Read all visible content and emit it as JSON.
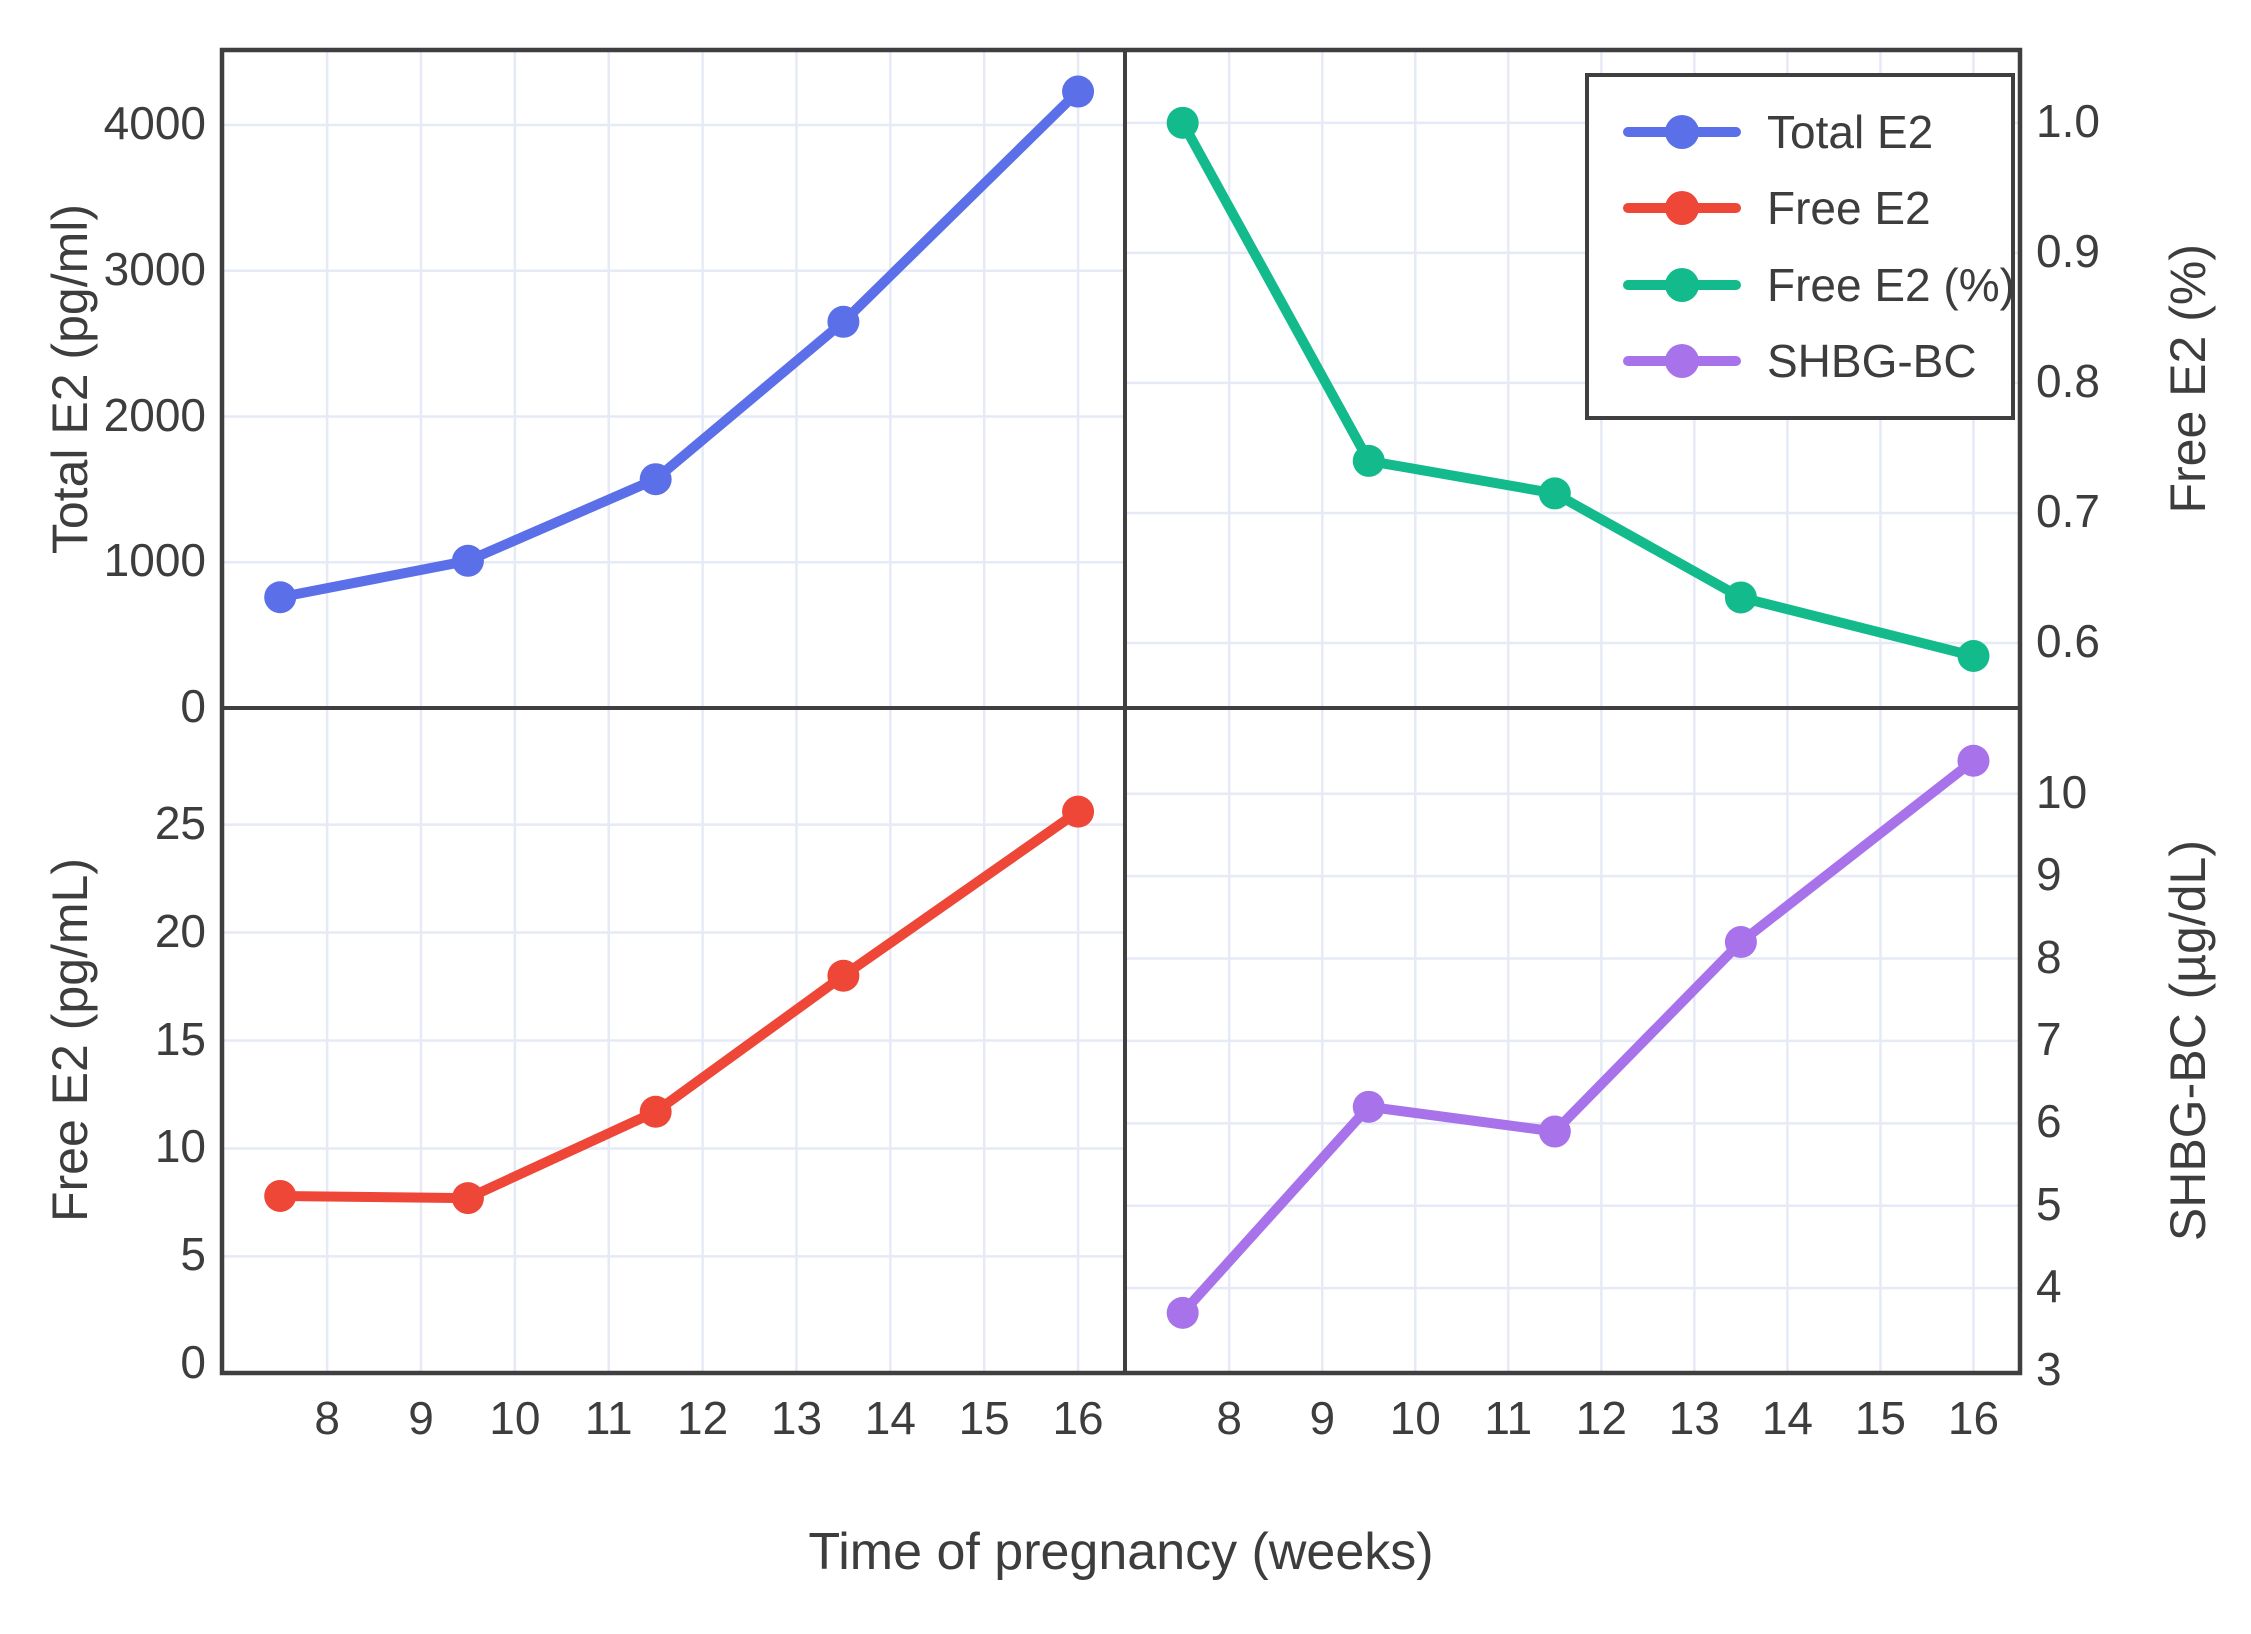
{
  "figure_labels": {
    "xlabel": "Time of pregnancy (weeks)"
  },
  "colors": {
    "total_e2": "#5A6FE8",
    "free_e2": "#EE4637",
    "free_e2_pct": "#13BB8C",
    "shbg_bc": "#A873EA",
    "axis": "#3F3F3F",
    "grid": "#E6EAF6",
    "text": "#3D3D3D",
    "background": "#FFFFFF"
  },
  "legend": {
    "position": "upper-right-panel",
    "entries": [
      {
        "label": "Total E2",
        "color": "#5A6FE8"
      },
      {
        "label": "Free E2",
        "color": "#EE4637"
      },
      {
        "label": "Free E2 (%)",
        "color": "#13BB8C"
      },
      {
        "label": "SHBG-BC",
        "color": "#A873EA"
      }
    ]
  },
  "chart_data": [
    {
      "type": "line",
      "name": "Total E2",
      "panel": "top-left",
      "axis_side": "left",
      "axis_label": "Total E2 (pg/ml)",
      "color": "#5A6FE8",
      "x": [
        7.5,
        9.5,
        11.5,
        13.5,
        16
      ],
      "y": [
        760,
        1010,
        1570,
        2650,
        4230
      ],
      "xlim": [
        6.88,
        16.5
      ],
      "ylim": [
        0,
        4515
      ],
      "xticks": [
        8,
        9,
        10,
        11,
        12,
        13,
        14,
        15,
        16
      ],
      "xtick_labels": [
        "8",
        "9",
        "10",
        "11",
        "12",
        "13",
        "14",
        "15",
        "16"
      ],
      "yticks": [
        0,
        1000,
        2000,
        3000,
        4000
      ],
      "ytick_labels": [
        "0",
        "1000",
        "2000",
        "3000",
        "4000"
      ],
      "grid": true
    },
    {
      "type": "line",
      "name": "Free E2 (%)",
      "panel": "top-right",
      "axis_side": "right",
      "axis_label": "Free E2 (%)",
      "color": "#13BB8C",
      "x": [
        7.5,
        9.5,
        11.5,
        13.5,
        16
      ],
      "y": [
        1.0,
        0.74,
        0.715,
        0.635,
        0.59
      ],
      "xlim": [
        6.88,
        16.5
      ],
      "ylim": [
        0.55,
        1.056
      ],
      "xticks": [
        8,
        9,
        10,
        11,
        12,
        13,
        14,
        15,
        16
      ],
      "xtick_labels": [
        "8",
        "9",
        "10",
        "11",
        "12",
        "13",
        "14",
        "15",
        "16"
      ],
      "yticks": [
        0.6,
        0.7,
        0.8,
        0.9,
        1.0
      ],
      "ytick_labels": [
        "0.6",
        "0.7",
        "0.8",
        "0.9",
        "1.0"
      ],
      "grid": true
    },
    {
      "type": "line",
      "name": "Free E2",
      "panel": "bottom-left",
      "axis_side": "left",
      "axis_label": "Free E2 (pg/mL)",
      "color": "#EE4637",
      "x": [
        7.5,
        9.5,
        11.5,
        13.5,
        16
      ],
      "y": [
        7.8,
        7.7,
        11.7,
        18.0,
        25.6
      ],
      "xlim": [
        6.88,
        16.5
      ],
      "ylim": [
        -0.4,
        30.4
      ],
      "xticks": [
        8,
        9,
        10,
        11,
        12,
        13,
        14,
        15,
        16
      ],
      "xtick_labels": [
        "8",
        "9",
        "10",
        "11",
        "12",
        "13",
        "14",
        "15",
        "16"
      ],
      "yticks": [
        0,
        5,
        10,
        15,
        20,
        25
      ],
      "ytick_labels": [
        "0",
        "5",
        "10",
        "15",
        "20",
        "25"
      ],
      "grid": true
    },
    {
      "type": "line",
      "name": "SHBG-BC",
      "panel": "bottom-right",
      "axis_side": "right",
      "axis_label": "SHBG-BC (µg/dL)",
      "color": "#A873EA",
      "x": [
        7.5,
        9.5,
        11.5,
        13.5,
        16
      ],
      "y": [
        3.7,
        6.2,
        5.9,
        8.2,
        10.4
      ],
      "xlim": [
        6.88,
        16.5
      ],
      "ylim": [
        2.97,
        11.04
      ],
      "xticks": [
        8,
        9,
        10,
        11,
        12,
        13,
        14,
        15,
        16
      ],
      "xtick_labels": [
        "8",
        "9",
        "10",
        "11",
        "12",
        "13",
        "14",
        "15",
        "16"
      ],
      "yticks": [
        3,
        4,
        5,
        6,
        7,
        8,
        9,
        10
      ],
      "ytick_labels": [
        "3",
        "4",
        "5",
        "6",
        "7",
        "8",
        "9",
        "10"
      ],
      "grid": true
    }
  ]
}
